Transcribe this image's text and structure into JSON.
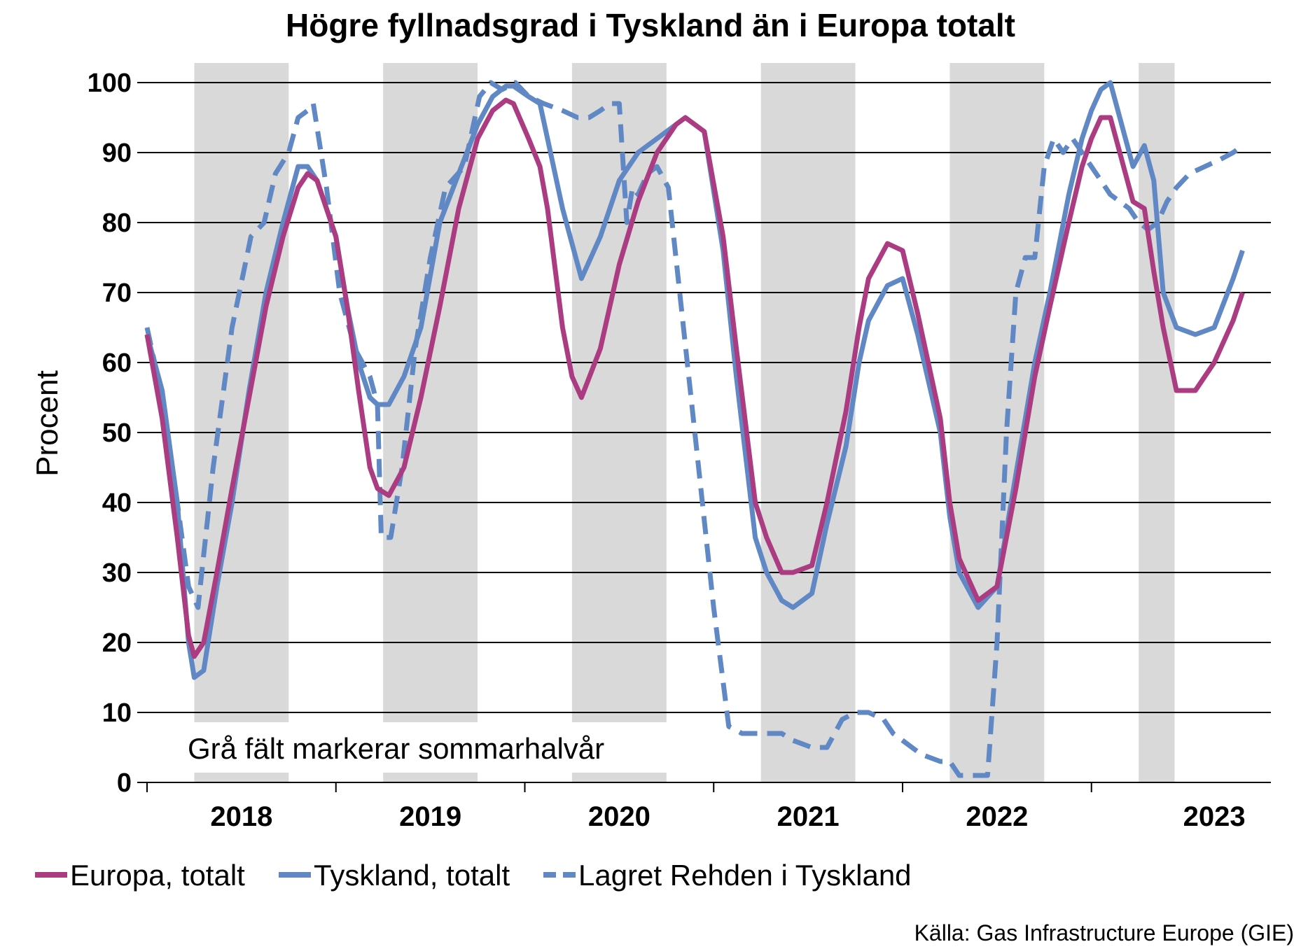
{
  "chart_data": {
    "type": "line",
    "title": "Högre fyllnadsgrad i Tyskland än i Europa totalt",
    "ylabel": "Procent",
    "xlabel": "",
    "ylim": [
      0,
      100
    ],
    "yticks": [
      "0",
      "10",
      "20",
      "30",
      "40",
      "50",
      "60",
      "70",
      "80",
      "90",
      "100"
    ],
    "xlim": [
      2017.5,
      2023.45
    ],
    "year_labels": [
      {
        "label": "2018",
        "center": 2018.0
      },
      {
        "label": "2019",
        "center": 2019.0
      },
      {
        "label": "2020",
        "center": 2020.0
      },
      {
        "label": "2021",
        "center": 2021.0
      },
      {
        "label": "2022",
        "center": 2022.0
      },
      {
        "label": "2023",
        "center": 2023.15
      }
    ],
    "summer_bands": [
      [
        2017.75,
        2018.25
      ],
      [
        2018.75,
        2019.25
      ],
      [
        2019.75,
        2020.25
      ],
      [
        2020.75,
        2021.25
      ],
      [
        2021.75,
        2022.25
      ],
      [
        2022.75,
        2022.94
      ]
    ],
    "grid": true,
    "legend_position": "bottom",
    "annotation": "Grå fält markerar sommarhalvår",
    "source": "Källa: Gas Infrastructure Europe (GIE)",
    "colors": {
      "europa": "#AC3C82",
      "tyskland": "#6088C4",
      "band": "#D9D9D9"
    },
    "series": [
      {
        "name": "Europa, totalt",
        "style": "solid",
        "color": "#AC3C82",
        "x": [
          2017.5,
          2017.58,
          2017.66,
          2017.72,
          2017.75,
          2017.8,
          2017.87,
          2017.95,
          2018.04,
          2018.13,
          2018.22,
          2018.3,
          2018.35,
          2018.4,
          2018.5,
          2018.56,
          2018.62,
          2018.68,
          2018.72,
          2018.78,
          2018.86,
          2018.95,
          2019.05,
          2019.15,
          2019.25,
          2019.33,
          2019.4,
          2019.44,
          2019.52,
          2019.58,
          2019.62,
          2019.7,
          2019.75,
          2019.8,
          2019.9,
          2020.0,
          2020.1,
          2020.2,
          2020.3,
          2020.35,
          2020.45,
          2020.55,
          2020.62,
          2020.72,
          2020.78,
          2020.86,
          2020.92,
          2021.02,
          2021.1,
          2021.2,
          2021.27,
          2021.32,
          2021.42,
          2021.5,
          2021.58,
          2021.7,
          2021.75,
          2021.8,
          2021.9,
          2022.0,
          2022.1,
          2022.2,
          2022.28,
          2022.38,
          2022.45,
          2022.5,
          2022.55,
          2022.6,
          2022.65,
          2022.72,
          2022.78,
          2022.83,
          2022.88,
          2022.95,
          2023.05,
          2023.15,
          2023.25,
          2023.3
        ],
        "values": [
          64,
          52,
          35,
          21,
          18,
          20,
          30,
          42,
          55,
          68,
          78,
          85,
          87,
          86,
          78,
          68,
          56,
          45,
          42,
          41,
          45,
          55,
          68,
          82,
          92,
          96,
          97.5,
          97,
          92,
          88,
          82,
          65,
          58,
          55,
          62,
          74,
          83,
          90,
          94,
          95,
          93,
          78,
          62,
          40,
          35,
          30,
          30,
          31,
          40,
          53,
          65,
          72,
          77,
          76,
          67,
          52,
          40,
          32,
          26,
          28,
          42,
          58,
          68,
          80,
          88,
          92,
          95,
          95,
          90,
          83,
          82,
          73,
          65,
          56,
          56,
          60,
          66,
          70
        ]
      },
      {
        "name": "Tyskland, totalt",
        "style": "solid",
        "color": "#6088C4",
        "x": [
          2017.5,
          2017.58,
          2017.66,
          2017.72,
          2017.75,
          2017.8,
          2017.87,
          2017.95,
          2018.04,
          2018.13,
          2018.22,
          2018.3,
          2018.35,
          2018.4,
          2018.5,
          2018.56,
          2018.62,
          2018.68,
          2018.72,
          2018.78,
          2018.86,
          2018.95,
          2019.05,
          2019.15,
          2019.25,
          2019.33,
          2019.4,
          2019.44,
          2019.52,
          2019.58,
          2019.62,
          2019.7,
          2019.75,
          2019.8,
          2019.9,
          2020.0,
          2020.1,
          2020.2,
          2020.3,
          2020.35,
          2020.45,
          2020.55,
          2020.62,
          2020.72,
          2020.78,
          2020.86,
          2020.92,
          2021.02,
          2021.1,
          2021.2,
          2021.27,
          2021.32,
          2021.42,
          2021.5,
          2021.58,
          2021.7,
          2021.75,
          2021.8,
          2021.9,
          2022.0,
          2022.1,
          2022.2,
          2022.28,
          2022.38,
          2022.45,
          2022.5,
          2022.55,
          2022.6,
          2022.65,
          2022.72,
          2022.78,
          2022.83,
          2022.88,
          2022.95,
          2023.05,
          2023.15,
          2023.25,
          2023.3
        ],
        "values": [
          64,
          56,
          40,
          20,
          15,
          16,
          28,
          40,
          56,
          70,
          80,
          88,
          88,
          86,
          78,
          68,
          60,
          55,
          54,
          54,
          58,
          65,
          80,
          87,
          94,
          98,
          99.5,
          99.5,
          98,
          97,
          92,
          82,
          77,
          72,
          78,
          86,
          90,
          92,
          94,
          95,
          93,
          76,
          58,
          35,
          30,
          26,
          25,
          27,
          37,
          48,
          60,
          66,
          71,
          72,
          64,
          50,
          38,
          30,
          25,
          28,
          44,
          60,
          70,
          84,
          92,
          96,
          99,
          100,
          95,
          88,
          91,
          86,
          70,
          65,
          64,
          65,
          72,
          76
        ]
      },
      {
        "name": "Lagret Rehden i Tyskland",
        "style": "dashed",
        "color": "#6088C4",
        "x": [
          2017.5,
          2017.58,
          2017.66,
          2017.72,
          2017.77,
          2017.85,
          2017.95,
          2018.05,
          2018.12,
          2018.18,
          2018.25,
          2018.3,
          2018.35,
          2018.38,
          2018.45,
          2018.52,
          2018.6,
          2018.68,
          2018.72,
          2018.74,
          2018.79,
          2018.85,
          2018.92,
          2019.0,
          2019.08,
          2019.18,
          2019.26,
          2019.32,
          2019.38,
          2019.45,
          2019.52,
          2019.6,
          2019.7,
          2019.78,
          2019.84,
          2019.9,
          2019.95,
          2020.0,
          2020.04,
          2020.07,
          2020.1,
          2020.15,
          2020.2,
          2020.26,
          2020.32,
          2020.4,
          2020.5,
          2020.58,
          2020.65,
          2020.72,
          2020.78,
          2020.86,
          2020.92,
          2021.02,
          2021.1,
          2021.18,
          2021.25,
          2021.32,
          2021.4,
          2021.45,
          2021.5,
          2021.55,
          2021.6,
          2021.7,
          2021.75,
          2021.8,
          2021.85,
          2021.9,
          2021.95,
          2022.0,
          2022.05,
          2022.1,
          2022.15,
          2022.2,
          2022.25,
          2022.3,
          2022.35,
          2022.4,
          2022.45,
          2022.5,
          2022.55,
          2022.6,
          2022.65,
          2022.7,
          2022.75,
          2022.8,
          2022.85,
          2022.9,
          2022.95,
          2023.02,
          2023.1,
          2023.18,
          2023.25,
          2023.3
        ],
        "values": [
          65,
          55,
          40,
          28,
          25,
          45,
          65,
          78,
          80,
          87,
          90,
          95,
          96,
          97,
          85,
          70,
          62,
          58,
          54,
          35,
          35,
          45,
          62,
          75,
          85,
          88,
          98,
          100,
          99,
          100,
          98,
          97,
          96,
          95,
          95,
          96,
          97,
          97,
          80,
          85,
          84,
          87,
          88,
          85,
          70,
          50,
          25,
          8,
          7,
          7,
          7,
          7,
          6,
          5,
          5,
          9,
          10,
          10,
          9,
          7,
          6,
          5,
          4,
          3,
          3,
          1,
          1,
          1,
          1,
          20,
          50,
          70,
          75,
          75,
          88,
          92,
          90,
          92,
          90,
          88,
          86,
          84,
          83,
          82,
          80,
          79,
          80,
          83,
          85,
          87,
          88,
          89,
          90,
          91
        ]
      }
    ]
  }
}
